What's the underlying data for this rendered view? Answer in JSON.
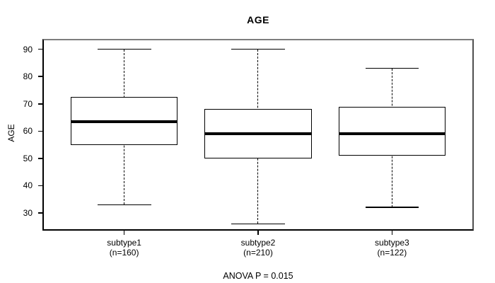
{
  "chart_data": {
    "type": "boxplot",
    "title": "AGE",
    "ylabel": "AGE",
    "footnote": "ANOVA P = 0.015",
    "yticks": [
      30,
      40,
      50,
      60,
      70,
      80,
      90
    ],
    "ylim": [
      24,
      93.3
    ],
    "xlim": [
      0.4,
      3.6
    ],
    "box_width": 0.8,
    "cap_width": 0.4,
    "legend": "none",
    "grid": "off",
    "groups": [
      {
        "label": "subtype1",
        "n_label": "(n=160)",
        "position": 1,
        "stats": {
          "low": 33,
          "q1": 55,
          "median": 63.5,
          "q3": 72.5,
          "high": 90
        }
      },
      {
        "label": "subtype2",
        "n_label": "(n=210)",
        "position": 2,
        "stats": {
          "low": 26,
          "q1": 50,
          "median": 59,
          "q3": 68,
          "high": 90
        }
      },
      {
        "label": "subtype3",
        "n_label": "(n=122)",
        "position": 3,
        "stats": {
          "low": 32,
          "q1": 51,
          "median": 59,
          "q3": 69,
          "high": 83
        }
      }
    ],
    "colors": {
      "line": "#000000",
      "box_fill": "#ffffff",
      "frame_top": "#7d7d7d",
      "frame_right": "#4f4f4f",
      "background": "#ffffff"
    }
  }
}
